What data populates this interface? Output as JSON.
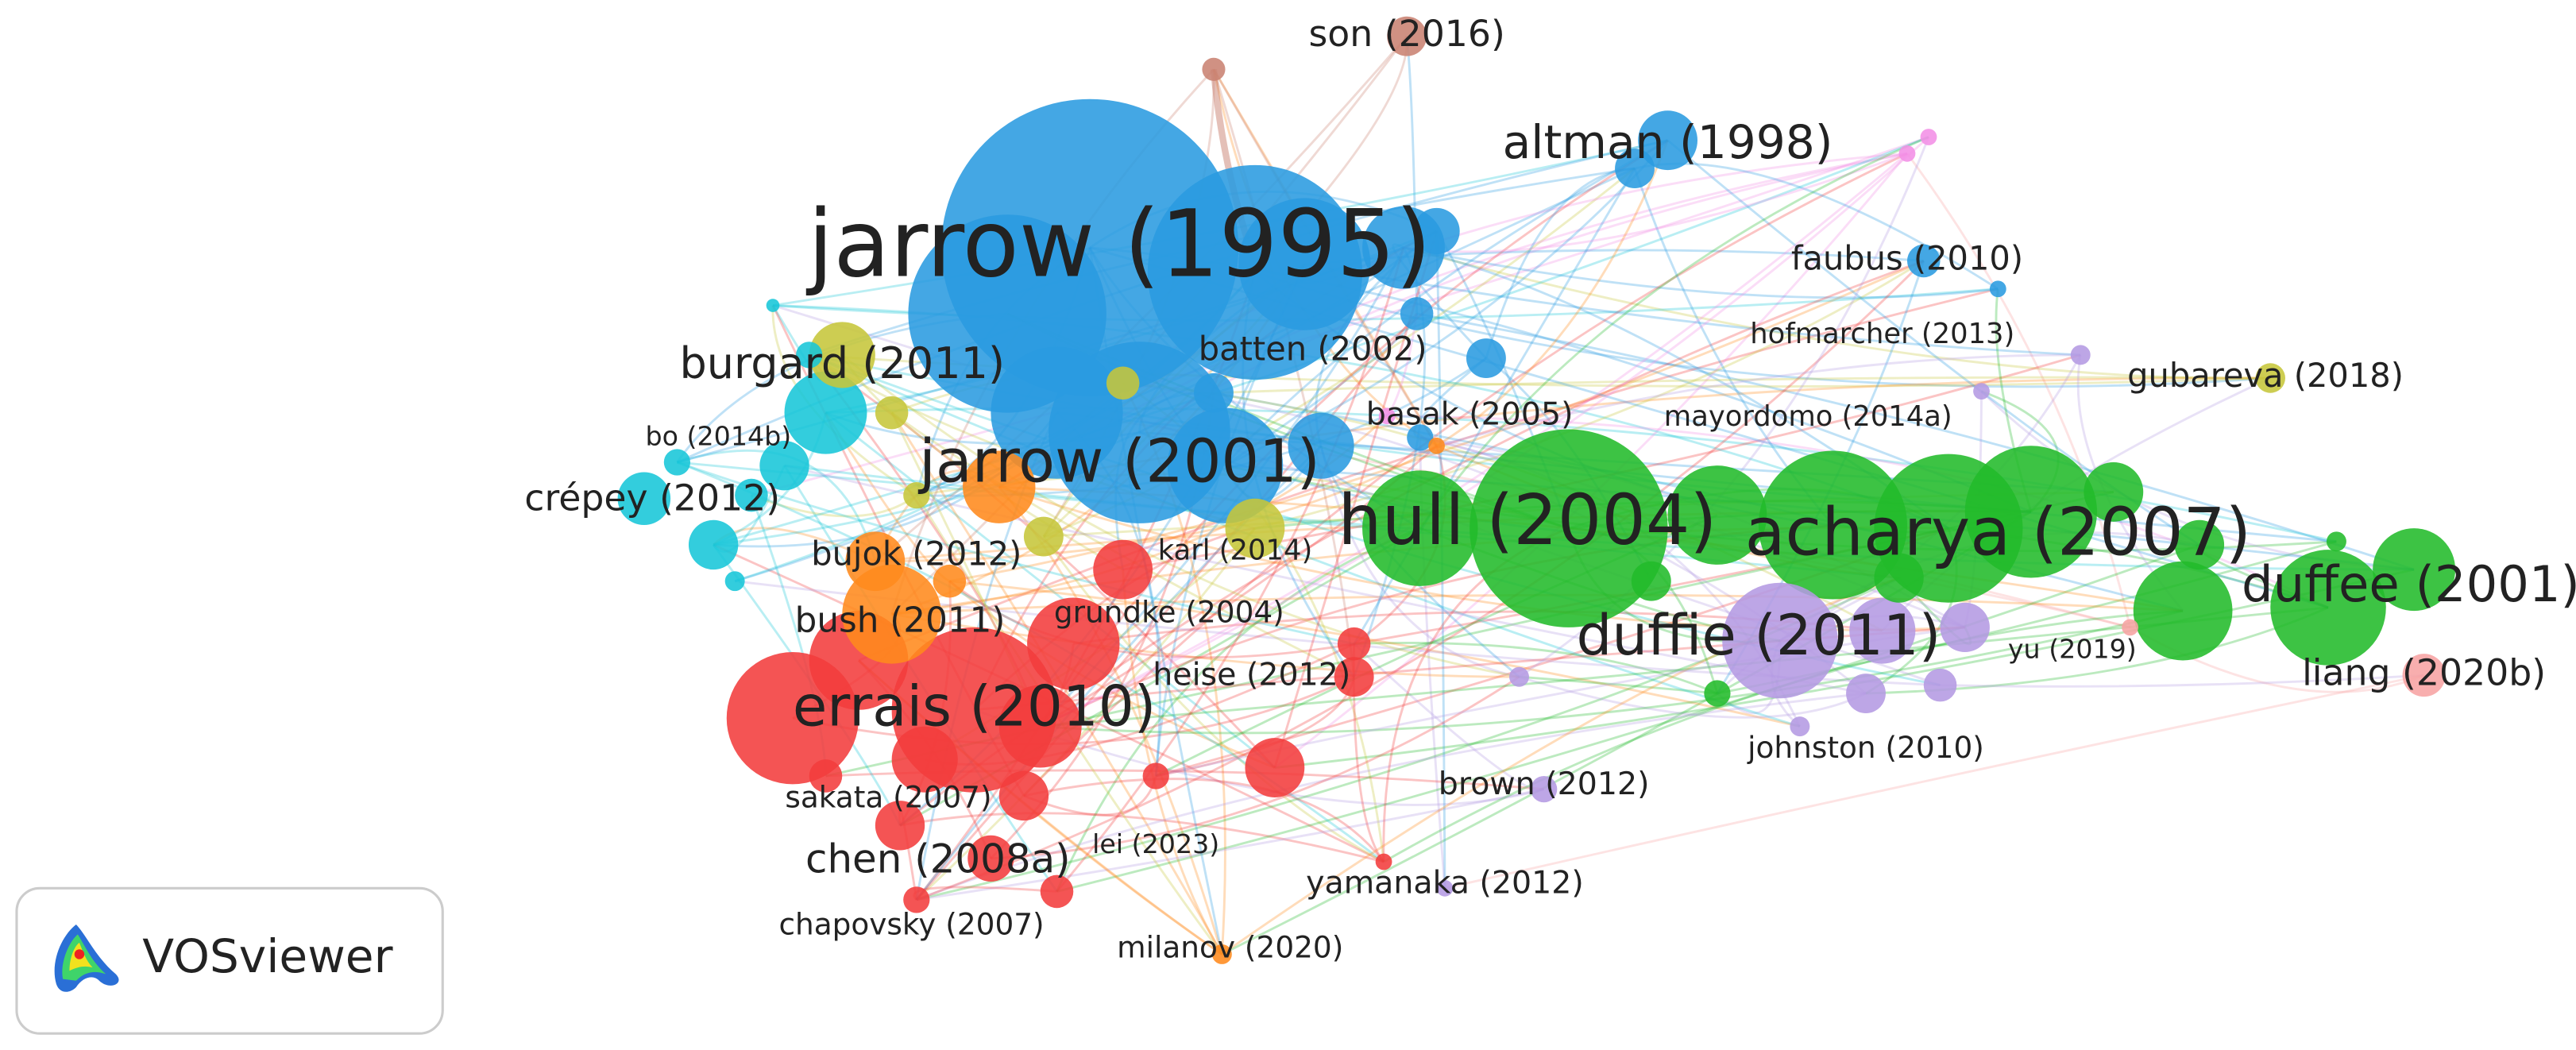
{
  "nodes": [
    {
      "label": "son (2016)"
    },
    {
      "label": "altman (1998)"
    },
    {
      "label": "jarrow (1995)"
    },
    {
      "label": "faubus (2010)"
    },
    {
      "label": "hofmarcher (2013)"
    },
    {
      "label": "burgard (2011)"
    },
    {
      "label": "batten (2002)"
    },
    {
      "label": "gubareva (2018)"
    },
    {
      "label": "basak (2005)"
    },
    {
      "label": "mayordomo (2014a)"
    },
    {
      "label": "bo (2014b)"
    },
    {
      "label": "jarrow (2001)"
    },
    {
      "label": "crépey (2012)"
    },
    {
      "label": "hull (2004)"
    },
    {
      "label": "acharya (2007)"
    },
    {
      "label": "bujok (2012)"
    },
    {
      "label": "karl (2014)"
    },
    {
      "label": "duffee (2001)"
    },
    {
      "label": "bush (2011)"
    },
    {
      "label": "grundke (2004)"
    },
    {
      "label": "duffie (2011)"
    },
    {
      "label": "yu (2019)"
    },
    {
      "label": "heise (2012)"
    },
    {
      "label": "liang (2020b)"
    },
    {
      "label": "errais (2010)"
    },
    {
      "label": "johnston (2010)"
    },
    {
      "label": "brown (2012)"
    },
    {
      "label": "sakata (2007)"
    },
    {
      "label": "chen (2008a)"
    },
    {
      "label": "lei (2023)"
    },
    {
      "label": "yamanaka (2012)"
    },
    {
      "label": "chapovsky (2007)"
    },
    {
      "label": "milanov (2020)"
    }
  ],
  "logo": "VOSviewer"
}
